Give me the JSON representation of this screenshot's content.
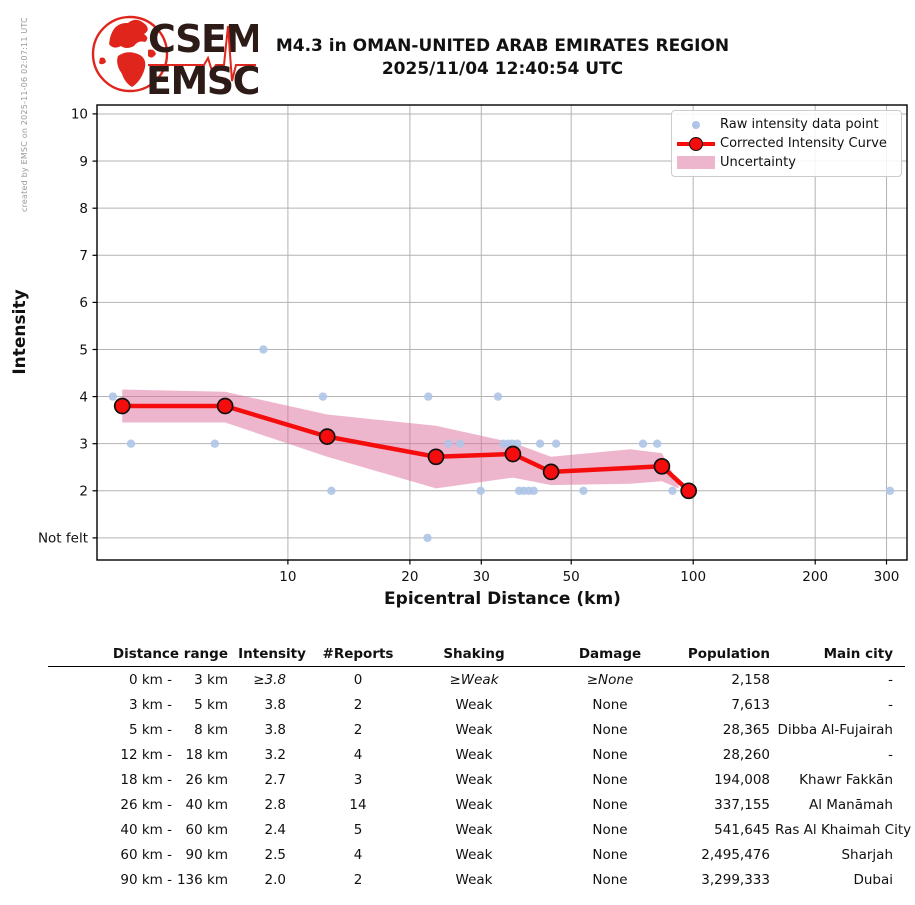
{
  "header": {
    "logo_line1": "CSEM",
    "logo_line2": "EMSC",
    "title": "M4.3 in OMAN-UNITED ARAB EMIRATES REGION",
    "subtitle": "2025/11/04 12:40:54 UTC",
    "credit": "created by EMSC on 2025-11-06 02:07:11 UTC"
  },
  "chart_data": {
    "type": "line",
    "title": "M4.3 in OMAN-UNITED ARAB EMIRATES REGION",
    "subtitle": "2025/11/04 12:40:54 UTC",
    "xlabel": "Epicentral Distance (km)",
    "ylabel": "Intensity",
    "x_scale": "log",
    "x_ticks": [
      10,
      20,
      30,
      50,
      100,
      200,
      300
    ],
    "x_range": [
      3.38,
      337
    ],
    "y_tick_values": [
      1,
      2,
      3,
      4,
      5,
      6,
      7,
      8,
      9,
      10
    ],
    "y_tick_labels": [
      "Not felt",
      "2",
      "3",
      "4",
      "5",
      "6",
      "7",
      "8",
      "9",
      "10"
    ],
    "y_range": [
      0.53,
      10.19
    ],
    "grid": true,
    "legend_position": "upper right",
    "legend": [
      "Raw intensity data point",
      "Corrected Intensity Curve",
      "Uncertainty"
    ],
    "raw_points": [
      [
        3.7,
        4
      ],
      [
        4.1,
        3
      ],
      [
        6.6,
        3
      ],
      [
        8.7,
        5
      ],
      [
        12.2,
        4
      ],
      [
        12.8,
        2
      ],
      [
        22.1,
        1
      ],
      [
        22.2,
        4
      ],
      [
        24.9,
        3
      ],
      [
        26.6,
        3
      ],
      [
        29.9,
        2
      ],
      [
        33,
        4
      ],
      [
        34,
        3
      ],
      [
        35,
        3
      ],
      [
        35.8,
        3
      ],
      [
        36.8,
        3
      ],
      [
        37.2,
        2
      ],
      [
        38.2,
        2
      ],
      [
        39.3,
        2
      ],
      [
        40.4,
        2
      ],
      [
        41.9,
        3
      ],
      [
        45.9,
        3
      ],
      [
        53.6,
        2
      ],
      [
        75.2,
        3
      ],
      [
        81.5,
        3
      ],
      [
        88.9,
        2
      ],
      [
        306,
        2
      ]
    ],
    "corrected_curve": {
      "x": [
        3.9,
        7.0,
        12.5,
        23.2,
        35.9,
        44.6,
        83.7,
        97.5
      ],
      "y": [
        3.8,
        3.8,
        3.15,
        2.72,
        2.78,
        2.4,
        2.52,
        2.0
      ]
    },
    "uncertainty": {
      "x": [
        3.9,
        7.0,
        12.5,
        23.2,
        35.9,
        44.6,
        70.0,
        83.7,
        92.0
      ],
      "upper": [
        4.15,
        4.1,
        3.62,
        3.38,
        3.02,
        2.72,
        2.88,
        2.8,
        2.15
      ],
      "lower": [
        3.45,
        3.45,
        2.72,
        2.05,
        2.28,
        2.12,
        2.15,
        2.2,
        2.05
      ]
    },
    "colors": {
      "raw": "#aec4e8",
      "curve": "#f50d0d",
      "marker_edge": "#101010",
      "band_base": "#de6e9b",
      "grid": "#b3b3b3",
      "axis": "#000000"
    }
  },
  "table": {
    "headers": [
      "Distance range",
      "Intensity",
      "#Reports",
      "Shaking",
      "Damage",
      "Population",
      "Main city"
    ],
    "rows": [
      {
        "range1": "0 km -",
        "range2": "3 km",
        "intensity": "≥3.8",
        "reports": "0",
        "shaking": "≥Weak",
        "damage": "≥None",
        "population": "2,158",
        "city": "-",
        "estimated": true
      },
      {
        "range1": "3 km -",
        "range2": "5 km",
        "intensity": "3.8",
        "reports": "2",
        "shaking": "Weak",
        "damage": "None",
        "population": "7,613",
        "city": "-",
        "estimated": false
      },
      {
        "range1": "5 km -",
        "range2": "8 km",
        "intensity": "3.8",
        "reports": "2",
        "shaking": "Weak",
        "damage": "None",
        "population": "28,365",
        "city": "Dibba Al-Fujairah",
        "estimated": false
      },
      {
        "range1": "12 km -",
        "range2": "18 km",
        "intensity": "3.2",
        "reports": "4",
        "shaking": "Weak",
        "damage": "None",
        "population": "28,260",
        "city": "-",
        "estimated": false
      },
      {
        "range1": "18 km -",
        "range2": "26 km",
        "intensity": "2.7",
        "reports": "3",
        "shaking": "Weak",
        "damage": "None",
        "population": "194,008",
        "city": "Khawr Fakkān",
        "estimated": false
      },
      {
        "range1": "26 km -",
        "range2": "40 km",
        "intensity": "2.8",
        "reports": "14",
        "shaking": "Weak",
        "damage": "None",
        "population": "337,155",
        "city": "Al Manāmah",
        "estimated": false
      },
      {
        "range1": "40 km -",
        "range2": "60 km",
        "intensity": "2.4",
        "reports": "5",
        "shaking": "Weak",
        "damage": "None",
        "population": "541,645",
        "city": "Ras Al Khaimah City",
        "estimated": false
      },
      {
        "range1": "60 km -",
        "range2": "90 km",
        "intensity": "2.5",
        "reports": "4",
        "shaking": "Weak",
        "damage": "None",
        "population": "2,495,476",
        "city": "Sharjah",
        "estimated": false
      },
      {
        "range1": "90 km -",
        "range2": "136 km",
        "intensity": "2.0",
        "reports": "2",
        "shaking": "Weak",
        "damage": "None",
        "population": "3,299,333",
        "city": "Dubai",
        "estimated": false
      }
    ]
  }
}
